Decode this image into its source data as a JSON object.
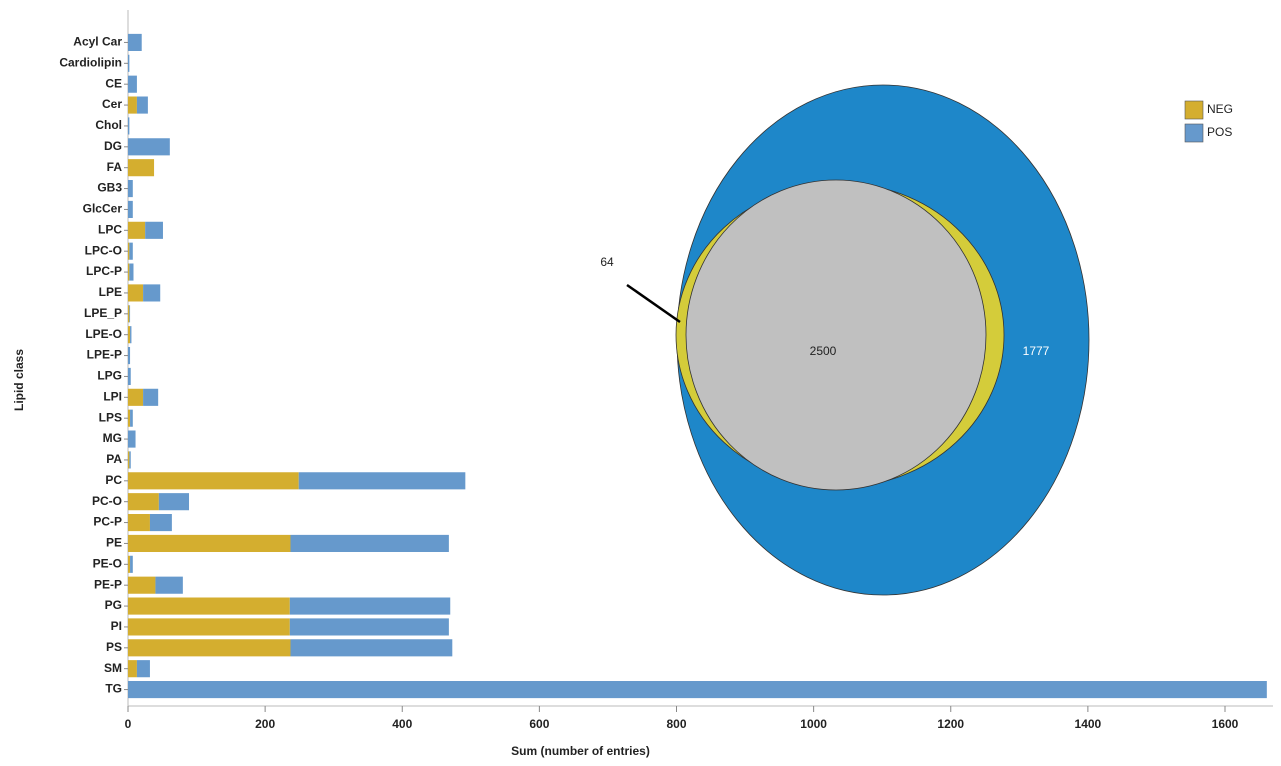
{
  "chart_data": [
    {
      "type": "bar",
      "orientation": "horizontal",
      "stacked": true,
      "xlabel": "Sum (number of entries)",
      "ylabel": "Lipid class",
      "categories": [
        "Acyl Car",
        "Cardiolipin",
        "CE",
        "Cer",
        "Chol",
        "DG",
        "FA",
        "GB3",
        "GlcCer",
        "LPC",
        "LPC-O",
        "LPC-P",
        "LPE",
        "LPE_P",
        "LPE-O",
        "LPE-P",
        "LPG",
        "LPI",
        "LPS",
        "MG",
        "PA",
        "PC",
        "PC-O",
        "PC-P",
        "PE",
        "PE-O",
        "PE-P",
        "PG",
        "PI",
        "PS",
        "SM",
        "TG"
      ],
      "series": [
        {
          "name": "NEG",
          "color": "#d4ae2f",
          "values": [
            0,
            0,
            0,
            13,
            0,
            0,
            38,
            0,
            0,
            25,
            2,
            2,
            22,
            2,
            3,
            0,
            0,
            22,
            3,
            0,
            2,
            249,
            45,
            32,
            237,
            3,
            40,
            236,
            236,
            237,
            13,
            0
          ]
        },
        {
          "name": "POS",
          "color": "#6699cc",
          "values": [
            20,
            2,
            13,
            16,
            2,
            61,
            0,
            7,
            7,
            26,
            5,
            6,
            25,
            1,
            2,
            3,
            4,
            22,
            4,
            11,
            2,
            243,
            44,
            32,
            231,
            4,
            40,
            234,
            232,
            236,
            19,
            1661
          ]
        }
      ],
      "xlim": [
        0,
        1670
      ],
      "xticks": [
        0,
        200,
        400,
        600,
        800,
        1000,
        1200,
        1400,
        1600
      ],
      "legend": "upper right"
    },
    {
      "type": "venn",
      "values": [
        64,
        2500,
        1777
      ],
      "colors": [
        "#d4cc3a",
        "#c0c0c0",
        "#1e87c9"
      ]
    }
  ]
}
